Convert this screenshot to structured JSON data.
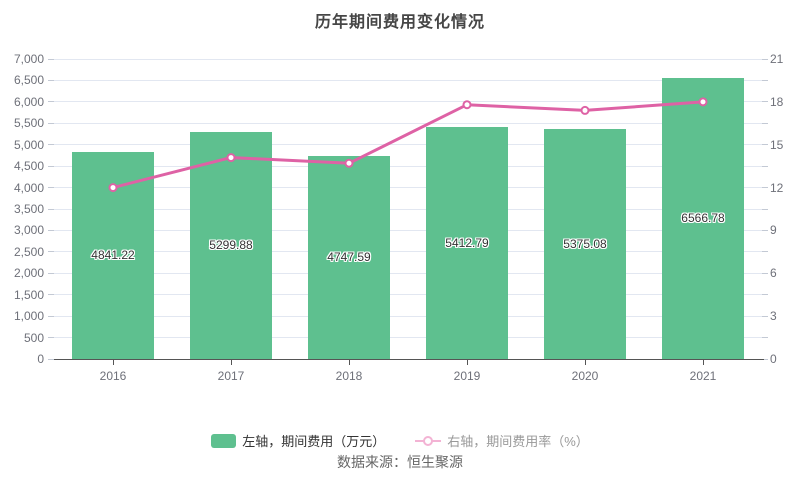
{
  "title": "历年期间费用变化情况",
  "chart_data": {
    "type": "bar",
    "categories": [
      "2016",
      "2017",
      "2018",
      "2019",
      "2020",
      "2021"
    ],
    "series": [
      {
        "name": "左轴，期间费用（万元）",
        "type": "bar",
        "axis": "left",
        "values": [
          4841.22,
          5299.88,
          4747.59,
          5412.79,
          5375.08,
          6566.78
        ],
        "color": "#5ec08f"
      },
      {
        "name": "右轴，期间费用率（%）",
        "type": "line",
        "axis": "right",
        "values": [
          12.0,
          14.1,
          13.7,
          17.8,
          17.4,
          18.0
        ],
        "color": "#de62a5"
      }
    ],
    "title": "历年期间费用变化情况",
    "xlabel": "",
    "ylabel_left": "期间费用（万元）",
    "ylabel_right": "期间费用率（%）",
    "left_axis": {
      "min": 0,
      "max": 7000,
      "step": 500
    },
    "right_axis": {
      "min": 0,
      "max": 21,
      "label_step": 3,
      "tick_step": 1.5
    },
    "grid": true,
    "legend_position": "bottom"
  },
  "legend": {
    "bar_label": "左轴，期间费用（万元）",
    "line_label": "右轴，期间费用率（%）"
  },
  "source": "数据来源：恒生聚源",
  "colors": {
    "bar": "#5ec08f",
    "line": "#de62a5",
    "line_faded": "#f3b3d4",
    "grid": "#e2e7f1",
    "axis_line": "#555555",
    "axis_label": "#6e7079",
    "title": "#464646",
    "source_text": "#666666"
  }
}
